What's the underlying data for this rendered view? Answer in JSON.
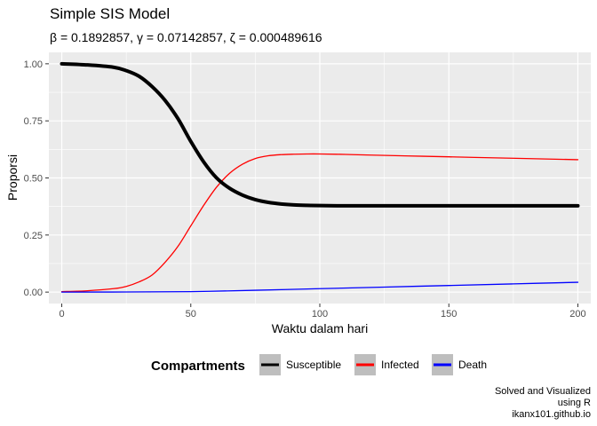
{
  "chart_data": {
    "type": "line",
    "title": "Simple SIS Model",
    "subtitle": "β = 0.1892857,  γ = 0.07142857,  ζ = 0.000489616",
    "xlabel": "Waktu dalam hari",
    "ylabel": "Proporsi",
    "xlim": [
      -5,
      205
    ],
    "ylim": [
      -0.05,
      1.05
    ],
    "x_ticks": [
      0,
      50,
      100,
      150,
      200
    ],
    "x_tick_labels": [
      "0",
      "50",
      "100",
      "150",
      "200"
    ],
    "y_ticks": [
      0,
      0.25,
      0.5,
      0.75,
      1.0
    ],
    "y_tick_labels": [
      "0.00",
      "0.25",
      "0.50",
      "0.75",
      "1.00"
    ],
    "grid": true,
    "legend": {
      "title": "Compartments",
      "position": "bottom",
      "entries": [
        "Susceptible",
        "Infected",
        "Death"
      ]
    },
    "series": [
      {
        "name": "Susceptible",
        "color": "#000000",
        "x": [
          0,
          10,
          20,
          25,
          30,
          35,
          40,
          45,
          50,
          55,
          60,
          65,
          70,
          75,
          80,
          85,
          90,
          95,
          100,
          110,
          120,
          140,
          160,
          180,
          200
        ],
        "values": [
          1.0,
          0.995,
          0.985,
          0.97,
          0.945,
          0.9,
          0.84,
          0.76,
          0.66,
          0.57,
          0.5,
          0.455,
          0.425,
          0.405,
          0.393,
          0.386,
          0.382,
          0.38,
          0.379,
          0.378,
          0.378,
          0.378,
          0.378,
          0.378,
          0.378
        ]
      },
      {
        "name": "Infected",
        "color": "#ff0000",
        "x": [
          0,
          10,
          20,
          25,
          30,
          35,
          40,
          45,
          50,
          55,
          60,
          65,
          70,
          75,
          80,
          85,
          90,
          95,
          100,
          110,
          120,
          140,
          160,
          180,
          200
        ],
        "values": [
          0.002,
          0.006,
          0.015,
          0.025,
          0.045,
          0.075,
          0.13,
          0.2,
          0.29,
          0.38,
          0.46,
          0.52,
          0.56,
          0.585,
          0.597,
          0.602,
          0.604,
          0.605,
          0.605,
          0.603,
          0.6,
          0.595,
          0.59,
          0.585,
          0.58
        ]
      },
      {
        "name": "Death",
        "color": "#0000ff",
        "x": [
          0,
          25,
          50,
          75,
          100,
          125,
          150,
          175,
          200
        ],
        "values": [
          0.0,
          0.0005,
          0.002,
          0.008,
          0.015,
          0.022,
          0.029,
          0.036,
          0.043
        ]
      }
    ]
  },
  "caption": {
    "line1": "Solved and Visualized",
    "line2": "using R",
    "line3": "ikanx101.github.io"
  }
}
